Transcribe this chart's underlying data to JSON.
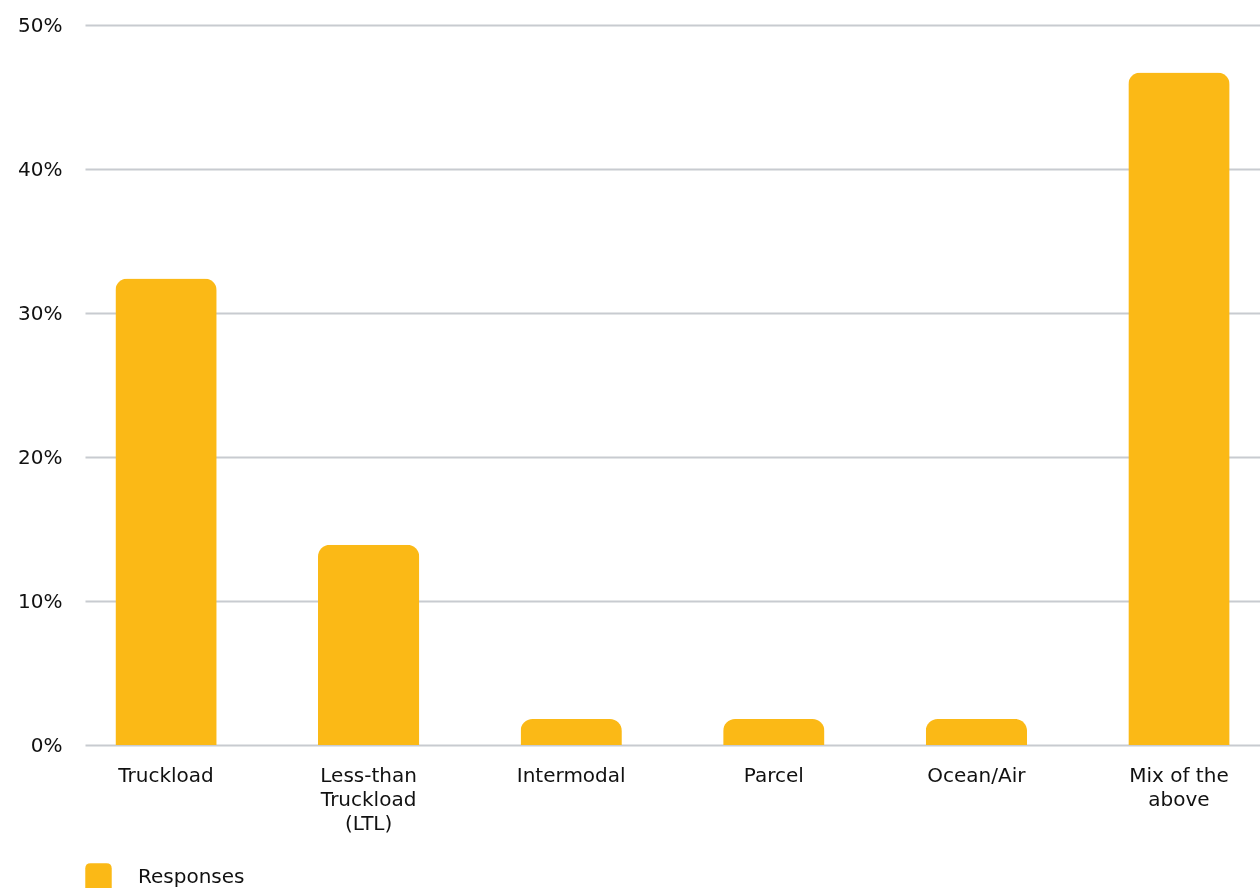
{
  "chart_data": {
    "type": "bar",
    "categories": [
      "Truckload",
      "Less-than Truckload (LTL)",
      "Intermodal",
      "Parcel",
      "Ocean/Air",
      "Mix of the above"
    ],
    "series": [
      {
        "name": "Responses",
        "color": "#fbb916",
        "values": [
          32.4,
          13.9,
          1.8,
          1.8,
          1.8,
          46.7
        ]
      }
    ],
    "ylim": [
      0,
      50
    ],
    "yticks": [
      {
        "value": 0,
        "label": "0%"
      },
      {
        "value": 10,
        "label": "10%"
      },
      {
        "value": 20,
        "label": "20%"
      },
      {
        "value": 30,
        "label": "30%"
      },
      {
        "value": 40,
        "label": "40%"
      },
      {
        "value": 50,
        "label": "50%"
      }
    ],
    "grid": "y",
    "legend": "bottom left"
  }
}
